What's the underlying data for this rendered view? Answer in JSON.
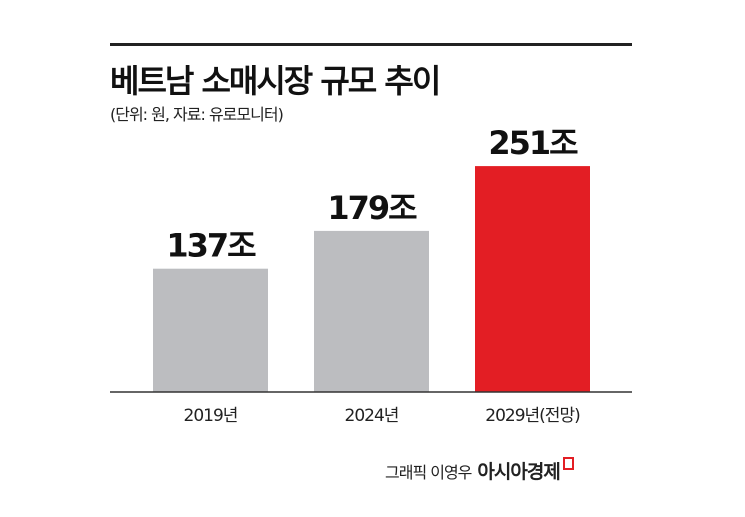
{
  "chart_data": {
    "type": "bar",
    "title": "베트남 소매시장 규모 추이",
    "subtitle": "(단위: 원, 자료: 유로모니터)",
    "categories": [
      "2019년",
      "2024년",
      "2029년(전망)"
    ],
    "values": [
      137,
      179,
      251
    ],
    "value_labels": [
      "137조",
      "179조",
      "251조"
    ],
    "colors": [
      "#bcbdc0",
      "#bcbdc0",
      "#e31e24"
    ],
    "ylim": [
      0,
      270
    ],
    "grid": false
  },
  "credit": {
    "text": "그래픽 이영우",
    "brand": "아시아경제"
  }
}
